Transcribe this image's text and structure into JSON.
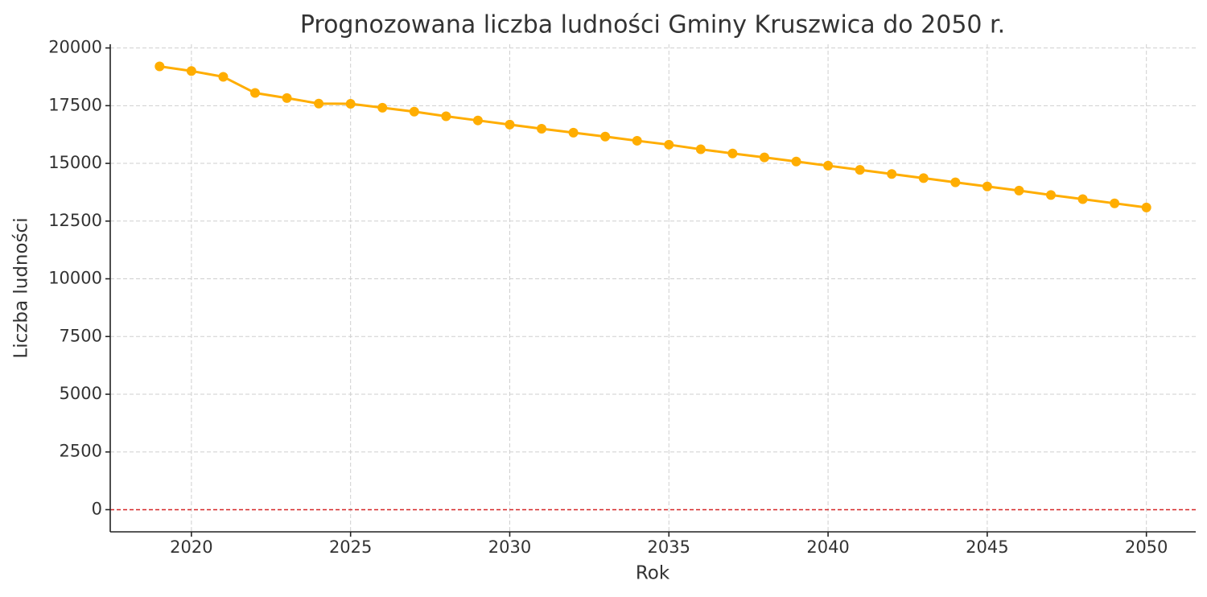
{
  "chart_data": {
    "type": "line",
    "title": "Prognozowana liczba ludności Gminy Kruszwica do 2050 r.",
    "x_label": "Rok",
    "y_label": "Liczba ludności",
    "x": [
      2019,
      2020,
      2021,
      2022,
      2023,
      2024,
      2025,
      2026,
      2027,
      2028,
      2029,
      2030,
      2031,
      2032,
      2033,
      2034,
      2035,
      2036,
      2037,
      2038,
      2039,
      2040,
      2041,
      2042,
      2043,
      2044,
      2045,
      2046,
      2047,
      2048,
      2049,
      2050
    ],
    "series": [
      {
        "name": "Liczba ludności",
        "color": "#ffad00",
        "values": [
          19200,
          19000,
          18750,
          18050,
          17830,
          17590,
          17580,
          17410,
          17240,
          17040,
          16860,
          16680,
          16500,
          16330,
          16160,
          15980,
          15810,
          15610,
          15430,
          15260,
          15080,
          14900,
          14720,
          14540,
          14360,
          14180,
          14000,
          13820,
          13630,
          13450,
          13270,
          13090
        ]
      }
    ],
    "hline": {
      "value": 0,
      "color": "#d62728"
    },
    "xlim": [
      2017.45,
      2051.55
    ],
    "xticks": [
      2020,
      2025,
      2030,
      2035,
      2040,
      2045,
      2050
    ],
    "ylim": [
      -960,
      20160
    ],
    "yticks": [
      0,
      2500,
      5000,
      7500,
      10000,
      12500,
      15000,
      17500,
      20000
    ],
    "grid": true
  }
}
